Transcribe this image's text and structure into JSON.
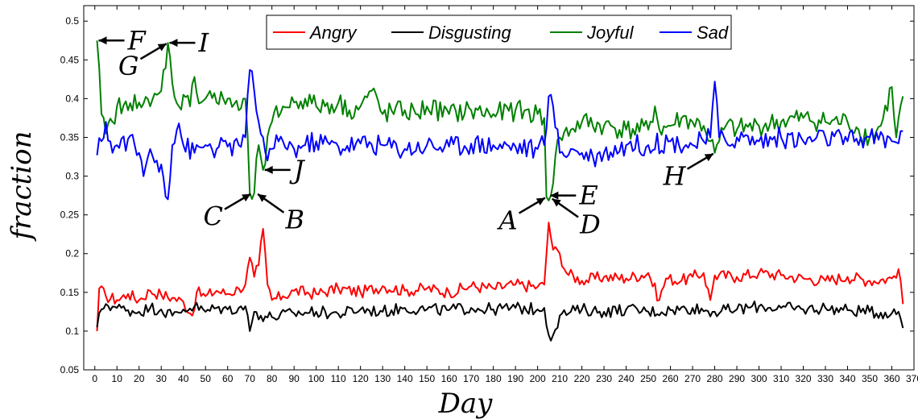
{
  "chart_data": {
    "type": "line",
    "xlabel": "Day",
    "ylabel": "fraction",
    "xlim": [
      -5,
      370
    ],
    "ylim": [
      0.05,
      0.52
    ],
    "xticks": [
      0,
      10,
      20,
      30,
      40,
      50,
      60,
      70,
      80,
      90,
      100,
      110,
      120,
      130,
      140,
      150,
      160,
      170,
      180,
      190,
      200,
      210,
      220,
      230,
      240,
      250,
      260,
      270,
      280,
      290,
      300,
      310,
      320,
      330,
      340,
      350,
      360,
      370
    ],
    "yticks": [
      0.05,
      0.1,
      0.15,
      0.2,
      0.25,
      0.3,
      0.35,
      0.4,
      0.45,
      0.5
    ],
    "ytick_labels": [
      "0.05",
      "0.1",
      "0.15",
      "0.2",
      "0.25",
      "0.3",
      "0.35",
      "0.4",
      "0.45",
      "0.5"
    ],
    "grid": false,
    "legend_position": "top-center",
    "series": [
      {
        "name": "Angry",
        "color": "#ff0000",
        "points": [
          [
            1,
            0.1
          ],
          [
            2,
            0.155
          ],
          [
            5,
            0.145
          ],
          [
            10,
            0.14
          ],
          [
            15,
            0.148
          ],
          [
            20,
            0.14
          ],
          [
            25,
            0.152
          ],
          [
            30,
            0.147
          ],
          [
            35,
            0.143
          ],
          [
            40,
            0.138
          ],
          [
            44,
            0.12
          ],
          [
            46,
            0.15
          ],
          [
            50,
            0.145
          ],
          [
            55,
            0.152
          ],
          [
            60,
            0.148
          ],
          [
            65,
            0.155
          ],
          [
            68,
            0.16
          ],
          [
            70,
            0.195
          ],
          [
            72,
            0.17
          ],
          [
            74,
            0.185
          ],
          [
            76,
            0.232
          ],
          [
            78,
            0.16
          ],
          [
            80,
            0.14
          ],
          [
            85,
            0.145
          ],
          [
            90,
            0.152
          ],
          [
            100,
            0.148
          ],
          [
            110,
            0.155
          ],
          [
            120,
            0.15
          ],
          [
            130,
            0.158
          ],
          [
            140,
            0.152
          ],
          [
            150,
            0.155
          ],
          [
            160,
            0.15
          ],
          [
            170,
            0.158
          ],
          [
            180,
            0.155
          ],
          [
            190,
            0.16
          ],
          [
            200,
            0.157
          ],
          [
            203,
            0.16
          ],
          [
            205,
            0.24
          ],
          [
            207,
            0.205
          ],
          [
            210,
            0.2
          ],
          [
            213,
            0.175
          ],
          [
            220,
            0.165
          ],
          [
            230,
            0.17
          ],
          [
            240,
            0.168
          ],
          [
            250,
            0.175
          ],
          [
            255,
            0.14
          ],
          [
            258,
            0.168
          ],
          [
            265,
            0.165
          ],
          [
            270,
            0.17
          ],
          [
            275,
            0.175
          ],
          [
            278,
            0.14
          ],
          [
            280,
            0.172
          ],
          [
            290,
            0.17
          ],
          [
            300,
            0.175
          ],
          [
            310,
            0.172
          ],
          [
            320,
            0.168
          ],
          [
            330,
            0.165
          ],
          [
            340,
            0.17
          ],
          [
            350,
            0.165
          ],
          [
            360,
            0.168
          ],
          [
            363,
            0.18
          ],
          [
            365,
            0.135
          ]
        ]
      },
      {
        "name": "Disgusting",
        "color": "#000000",
        "points": [
          [
            1,
            0.105
          ],
          [
            3,
            0.128
          ],
          [
            5,
            0.135
          ],
          [
            10,
            0.13
          ],
          [
            15,
            0.127
          ],
          [
            20,
            0.125
          ],
          [
            25,
            0.13
          ],
          [
            30,
            0.128
          ],
          [
            35,
            0.12
          ],
          [
            40,
            0.128
          ],
          [
            45,
            0.132
          ],
          [
            50,
            0.125
          ],
          [
            55,
            0.13
          ],
          [
            60,
            0.128
          ],
          [
            65,
            0.13
          ],
          [
            68,
            0.132
          ],
          [
            70,
            0.1
          ],
          [
            72,
            0.125
          ],
          [
            75,
            0.12
          ],
          [
            80,
            0.118
          ],
          [
            90,
            0.123
          ],
          [
            100,
            0.125
          ],
          [
            110,
            0.122
          ],
          [
            120,
            0.128
          ],
          [
            130,
            0.125
          ],
          [
            140,
            0.13
          ],
          [
            150,
            0.128
          ],
          [
            160,
            0.127
          ],
          [
            170,
            0.13
          ],
          [
            180,
            0.128
          ],
          [
            190,
            0.13
          ],
          [
            200,
            0.128
          ],
          [
            203,
            0.13
          ],
          [
            205,
            0.095
          ],
          [
            207,
            0.095
          ],
          [
            210,
            0.12
          ],
          [
            215,
            0.125
          ],
          [
            220,
            0.128
          ],
          [
            230,
            0.125
          ],
          [
            240,
            0.128
          ],
          [
            250,
            0.125
          ],
          [
            260,
            0.127
          ],
          [
            270,
            0.13
          ],
          [
            280,
            0.125
          ],
          [
            290,
            0.128
          ],
          [
            300,
            0.132
          ],
          [
            310,
            0.13
          ],
          [
            320,
            0.128
          ],
          [
            330,
            0.13
          ],
          [
            340,
            0.127
          ],
          [
            350,
            0.125
          ],
          [
            360,
            0.123
          ],
          [
            363,
            0.125
          ],
          [
            365,
            0.104
          ]
        ]
      },
      {
        "name": "Joyful",
        "color": "#008000",
        "points": [
          [
            1,
            0.475
          ],
          [
            3,
            0.38
          ],
          [
            5,
            0.355
          ],
          [
            8,
            0.37
          ],
          [
            10,
            0.39
          ],
          [
            15,
            0.385
          ],
          [
            18,
            0.405
          ],
          [
            20,
            0.395
          ],
          [
            25,
            0.39
          ],
          [
            28,
            0.405
          ],
          [
            30,
            0.41
          ],
          [
            33,
            0.472
          ],
          [
            35,
            0.42
          ],
          [
            38,
            0.39
          ],
          [
            40,
            0.405
          ],
          [
            43,
            0.39
          ],
          [
            45,
            0.428
          ],
          [
            48,
            0.395
          ],
          [
            52,
            0.41
          ],
          [
            55,
            0.395
          ],
          [
            60,
            0.4
          ],
          [
            65,
            0.385
          ],
          [
            68,
            0.4
          ],
          [
            70,
            0.278
          ],
          [
            72,
            0.278
          ],
          [
            74,
            0.34
          ],
          [
            76,
            0.308
          ],
          [
            80,
            0.37
          ],
          [
            85,
            0.39
          ],
          [
            90,
            0.395
          ],
          [
            95,
            0.4
          ],
          [
            100,
            0.39
          ],
          [
            110,
            0.395
          ],
          [
            115,
            0.385
          ],
          [
            120,
            0.39
          ],
          [
            125,
            0.41
          ],
          [
            130,
            0.38
          ],
          [
            140,
            0.385
          ],
          [
            145,
            0.38
          ],
          [
            150,
            0.39
          ],
          [
            160,
            0.38
          ],
          [
            170,
            0.385
          ],
          [
            180,
            0.38
          ],
          [
            190,
            0.385
          ],
          [
            200,
            0.38
          ],
          [
            203,
            0.375
          ],
          [
            204,
            0.273
          ],
          [
            206,
            0.275
          ],
          [
            208,
            0.325
          ],
          [
            210,
            0.35
          ],
          [
            215,
            0.36
          ],
          [
            220,
            0.37
          ],
          [
            230,
            0.365
          ],
          [
            240,
            0.36
          ],
          [
            250,
            0.36
          ],
          [
            253,
            0.39
          ],
          [
            255,
            0.36
          ],
          [
            260,
            0.365
          ],
          [
            265,
            0.375
          ],
          [
            270,
            0.37
          ],
          [
            275,
            0.365
          ],
          [
            278,
            0.345
          ],
          [
            280,
            0.33
          ],
          [
            282,
            0.345
          ],
          [
            285,
            0.365
          ],
          [
            290,
            0.36
          ],
          [
            300,
            0.365
          ],
          [
            310,
            0.37
          ],
          [
            320,
            0.375
          ],
          [
            330,
            0.37
          ],
          [
            340,
            0.37
          ],
          [
            345,
            0.36
          ],
          [
            350,
            0.35
          ],
          [
            355,
            0.365
          ],
          [
            360,
            0.415
          ],
          [
            362,
            0.35
          ],
          [
            365,
            0.403
          ]
        ]
      },
      {
        "name": "Sad",
        "color": "#0000ff",
        "points": [
          [
            1,
            0.327
          ],
          [
            3,
            0.345
          ],
          [
            5,
            0.37
          ],
          [
            8,
            0.33
          ],
          [
            10,
            0.34
          ],
          [
            15,
            0.348
          ],
          [
            20,
            0.33
          ],
          [
            22,
            0.3
          ],
          [
            25,
            0.335
          ],
          [
            28,
            0.32
          ],
          [
            30,
            0.315
          ],
          [
            33,
            0.27
          ],
          [
            35,
            0.34
          ],
          [
            38,
            0.368
          ],
          [
            40,
            0.34
          ],
          [
            45,
            0.33
          ],
          [
            50,
            0.34
          ],
          [
            55,
            0.335
          ],
          [
            60,
            0.338
          ],
          [
            65,
            0.34
          ],
          [
            68,
            0.35
          ],
          [
            70,
            0.437
          ],
          [
            72,
            0.41
          ],
          [
            74,
            0.37
          ],
          [
            76,
            0.35
          ],
          [
            78,
            0.32
          ],
          [
            80,
            0.335
          ],
          [
            85,
            0.345
          ],
          [
            90,
            0.335
          ],
          [
            95,
            0.34
          ],
          [
            100,
            0.345
          ],
          [
            110,
            0.338
          ],
          [
            120,
            0.342
          ],
          [
            130,
            0.34
          ],
          [
            140,
            0.335
          ],
          [
            150,
            0.34
          ],
          [
            160,
            0.338
          ],
          [
            170,
            0.342
          ],
          [
            180,
            0.34
          ],
          [
            190,
            0.338
          ],
          [
            200,
            0.335
          ],
          [
            203,
            0.34
          ],
          [
            205,
            0.403
          ],
          [
            207,
            0.39
          ],
          [
            210,
            0.33
          ],
          [
            215,
            0.335
          ],
          [
            220,
            0.33
          ],
          [
            225,
            0.325
          ],
          [
            230,
            0.33
          ],
          [
            240,
            0.34
          ],
          [
            250,
            0.34
          ],
          [
            260,
            0.345
          ],
          [
            270,
            0.34
          ],
          [
            275,
            0.345
          ],
          [
            278,
            0.35
          ],
          [
            280,
            0.422
          ],
          [
            282,
            0.35
          ],
          [
            285,
            0.345
          ],
          [
            290,
            0.35
          ],
          [
            300,
            0.345
          ],
          [
            310,
            0.35
          ],
          [
            320,
            0.345
          ],
          [
            330,
            0.35
          ],
          [
            340,
            0.345
          ],
          [
            350,
            0.35
          ],
          [
            360,
            0.345
          ],
          [
            365,
            0.358
          ]
        ]
      }
    ],
    "annotations": [
      {
        "label": "F",
        "x": 1,
        "y": 0.475,
        "dir": "right"
      },
      {
        "label": "G",
        "x": 33,
        "y": 0.472,
        "dir": "below-left"
      },
      {
        "label": "I",
        "x": 33,
        "y": 0.472,
        "dir": "right"
      },
      {
        "label": "J",
        "x": 76,
        "y": 0.308,
        "dir": "right"
      },
      {
        "label": "C",
        "x": 71,
        "y": 0.278,
        "dir": "below-left"
      },
      {
        "label": "B",
        "x": 73,
        "y": 0.278,
        "dir": "below-right"
      },
      {
        "label": "A",
        "x": 204,
        "y": 0.273,
        "dir": "below-left"
      },
      {
        "label": "E",
        "x": 205,
        "y": 0.275,
        "dir": "right"
      },
      {
        "label": "D",
        "x": 206,
        "y": 0.272,
        "dir": "below-right"
      },
      {
        "label": "H",
        "x": 280,
        "y": 0.33,
        "dir": "below-left"
      }
    ]
  }
}
